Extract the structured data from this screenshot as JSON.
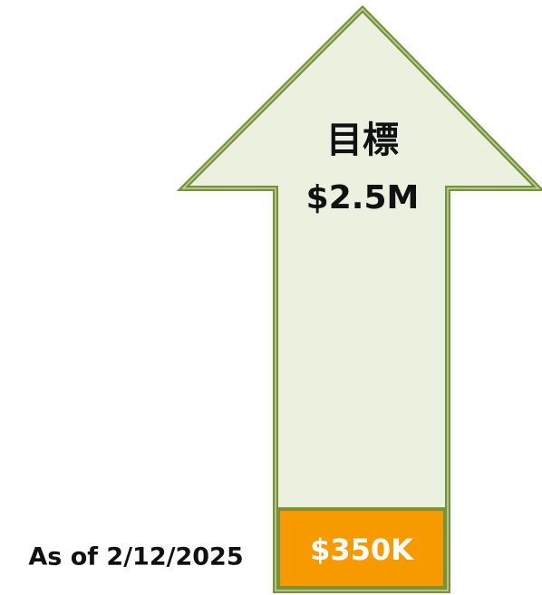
{
  "chart_data": {
    "type": "progress",
    "title": "目標",
    "goal": 2500000,
    "goal_label": "$2.5M",
    "value": 350000,
    "value_label": "$350K",
    "annotation": "As of 2/12/2025",
    "arrow_color": "#ebf1de",
    "outline_color": "#76923c",
    "color": "#f79a00"
  }
}
